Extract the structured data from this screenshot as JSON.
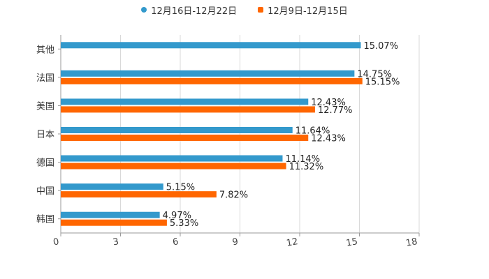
{
  "chart_data": {
    "type": "bar",
    "orientation": "horizontal",
    "categories": [
      "其他",
      "法国",
      "美国",
      "日本",
      "德国",
      "中国",
      "韩国"
    ],
    "series": [
      {
        "name": "12月16日-12月22日",
        "color": "#3399CC",
        "values": [
          15.07,
          14.75,
          12.43,
          11.64,
          11.14,
          5.15,
          4.97
        ],
        "labels": [
          "15.07%",
          "14.75%",
          "12.43%",
          "11.64%",
          "11.14%",
          "5.15%",
          "4.97%"
        ]
      },
      {
        "name": "12月9日-12月15日",
        "color": "#FF6600",
        "values": [
          null,
          15.15,
          12.77,
          12.43,
          11.32,
          7.82,
          5.33
        ],
        "labels": [
          "",
          "15.15%",
          "12.77%",
          "12.43%",
          "11.32%",
          "7.82%",
          "5.33%"
        ]
      }
    ],
    "xlim": [
      0,
      18
    ],
    "xticks": [
      "0",
      "3",
      "6",
      "9",
      "12",
      "15",
      "18"
    ],
    "xtick_values": [
      0,
      3,
      6,
      9,
      12,
      15,
      18
    ],
    "grid": true,
    "legend_position": "top-center"
  }
}
